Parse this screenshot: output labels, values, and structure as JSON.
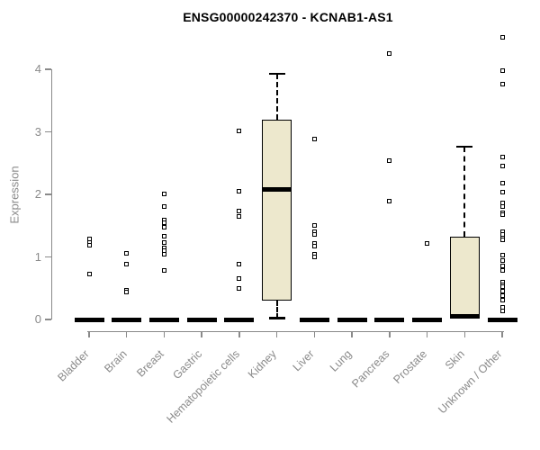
{
  "title": "ENSG00000242370 - KCNAB1-AS1",
  "chart_data": {
    "type": "boxplot",
    "title": "ENSG00000242370 - KCNAB1-AS1",
    "xlabel": "",
    "ylabel": "Expression",
    "ylim": [
      0,
      4.6
    ],
    "yticks": [
      0,
      1,
      2,
      3,
      4
    ],
    "grid": false,
    "legend": "none",
    "categories": [
      "Bladder",
      "Brain",
      "Breast",
      "Gastric",
      "Hematopoietic cells",
      "Kidney",
      "Liver",
      "Lung",
      "Pancreas",
      "Prostate",
      "Skin",
      "Unknown / Other"
    ],
    "colors": {
      "box_fill": "#EDE8CD",
      "box_border": "#000000",
      "point": "#000000",
      "axis": "#8a8a8a",
      "title": "#000000"
    },
    "series": [
      {
        "category": "Bladder",
        "median": 0,
        "points": [
          1.29,
          1.23,
          1.18,
          0.72
        ]
      },
      {
        "category": "Brain",
        "median": 0,
        "points": [
          1.06,
          0.89,
          0.47,
          0.44
        ]
      },
      {
        "category": "Breast",
        "median": 0,
        "points": [
          2.01,
          1.8,
          1.59,
          1.55,
          1.47,
          1.33,
          1.23,
          1.15,
          1.1,
          1.05,
          0.79
        ]
      },
      {
        "category": "Gastric",
        "median": 0,
        "points": []
      },
      {
        "category": "Hematopoietic cells",
        "median": 0,
        "points": [
          3.02,
          2.05,
          1.73,
          1.65,
          0.88,
          0.66,
          0.49
        ]
      },
      {
        "category": "Kidney",
        "box": {
          "q1": 0.3,
          "median": 2.08,
          "q3": 3.2,
          "lower_whisker": 0.02,
          "upper_whisker": 3.93
        },
        "points": []
      },
      {
        "category": "Liver",
        "median": 0,
        "points": [
          2.88,
          1.51,
          1.4,
          1.36,
          1.22,
          1.17,
          1.05,
          1.0
        ]
      },
      {
        "category": "Lung",
        "median": 0,
        "points": []
      },
      {
        "category": "Pancreas",
        "median": 0,
        "points": [
          4.25,
          2.54,
          1.89
        ]
      },
      {
        "category": "Prostate",
        "median": 0,
        "points": [
          1.22
        ]
      },
      {
        "category": "Skin",
        "box": {
          "q1": 0.05,
          "median": 0.05,
          "q3": 1.32,
          "lower_whisker": 0.05,
          "upper_whisker": 2.76
        },
        "points": []
      },
      {
        "category": "Unknown / Other",
        "median": 0,
        "points": [
          4.51,
          3.98,
          3.76,
          2.6,
          2.45,
          2.18,
          2.04,
          1.87,
          1.8,
          1.71,
          1.67,
          1.41,
          1.36,
          1.3,
          1.27,
          1.03,
          0.94,
          0.86,
          0.79,
          0.6,
          0.56,
          0.53,
          0.46,
          0.38,
          0.31,
          0.19,
          0.14
        ]
      }
    ]
  }
}
